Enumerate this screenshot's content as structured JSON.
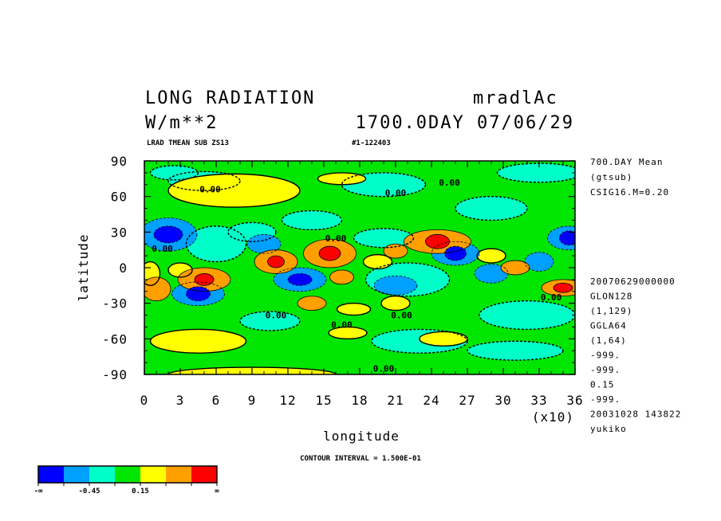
{
  "header": {
    "title": "LONG RADIATION",
    "dataset": "mradlAc",
    "units": "W/m**2",
    "time": "1700.0DAY 07/06/29",
    "var_line": "LRAD TMEAN SUB ZS13",
    "id_line": "#1-122403"
  },
  "side_info": {
    "top": [
      "700.DAY Mean",
      "(gtsub)",
      "CSIG16.M=0.20"
    ],
    "bottom": [
      "20070629000000",
      "GLON128",
      "(1,129)",
      "GGLA64",
      "(1,64)",
      "-999.",
      "-999.",
      "0.15",
      "-999.",
      "20031028 143822",
      "yukiko"
    ]
  },
  "chart_data": {
    "type": "heatmap",
    "title": "LONG RADIATION",
    "xlabel": "longitude",
    "ylabel": "latitude",
    "x_scale_note": "(x10)",
    "xlim": [
      0,
      36
    ],
    "ylim": [
      -90,
      90
    ],
    "x_ticks": [
      "0",
      "3",
      "6",
      "9",
      "12",
      "15",
      "18",
      "21",
      "24",
      "27",
      "30",
      "33",
      "36"
    ],
    "y_ticks": [
      "90",
      "60",
      "30",
      "0",
      "-30",
      "-60",
      "-90"
    ],
    "contour_interval_text": "CONTOUR INTERVAL = 1.500E-01",
    "zero_contour_labels": [
      {
        "x": 5.5,
        "y": 66,
        "text": "0.00"
      },
      {
        "x": 21.0,
        "y": 63,
        "text": "0.00"
      },
      {
        "x": 25.5,
        "y": 72,
        "text": "0.00"
      },
      {
        "x": 1.5,
        "y": 16,
        "text": "0.00"
      },
      {
        "x": 16.0,
        "y": 25,
        "text": "0.00"
      },
      {
        "x": 11.0,
        "y": -40,
        "text": "0.00"
      },
      {
        "x": 16.5,
        "y": -48,
        "text": "0.00"
      },
      {
        "x": 21.5,
        "y": -40,
        "text": "0.00"
      },
      {
        "x": 34.0,
        "y": -25,
        "text": "0.00"
      },
      {
        "x": 20.0,
        "y": -85,
        "text": "0.00"
      }
    ],
    "color_levels": [
      {
        "level": -3,
        "color": "#0000ff"
      },
      {
        "level": -2,
        "color": "#00a0ff"
      },
      {
        "level": -1,
        "color": "#00ffc8"
      },
      {
        "level": 0,
        "color": "#00e600"
      },
      {
        "level": 1,
        "color": "#ffff00"
      },
      {
        "level": 2,
        "color": "#ffa000"
      },
      {
        "level": 3,
        "color": "#ff0000"
      }
    ],
    "features": [
      {
        "lon": 50,
        "lat": -10,
        "rx": 8,
        "ry": 5,
        "level": 3
      },
      {
        "lon": 110,
        "lat": 5,
        "rx": 7,
        "ry": 5,
        "level": 3
      },
      {
        "lon": 155,
        "lat": 12,
        "rx": 9,
        "ry": 6,
        "level": 3
      },
      {
        "lon": 245,
        "lat": 22,
        "rx": 10,
        "ry": 6,
        "level": 3
      },
      {
        "lon": 350,
        "lat": -17,
        "rx": 8,
        "ry": 4,
        "level": 3
      },
      {
        "lon": 50,
        "lat": -10,
        "rx": 22,
        "ry": 10,
        "level": 2
      },
      {
        "lon": 110,
        "lat": 5,
        "rx": 18,
        "ry": 10,
        "level": 2
      },
      {
        "lon": 155,
        "lat": 12,
        "rx": 22,
        "ry": 12,
        "level": 2
      },
      {
        "lon": 245,
        "lat": 22,
        "rx": 28,
        "ry": 10,
        "level": 2
      },
      {
        "lon": 350,
        "lat": -17,
        "rx": 18,
        "ry": 7,
        "level": 2
      },
      {
        "lon": 10,
        "lat": -18,
        "rx": 12,
        "ry": 10,
        "level": 2
      },
      {
        "lon": 165,
        "lat": -8,
        "rx": 10,
        "ry": 6,
        "level": 2
      },
      {
        "lon": 210,
        "lat": 14,
        "rx": 10,
        "ry": 6,
        "level": 2
      },
      {
        "lon": 310,
        "lat": 0,
        "rx": 12,
        "ry": 6,
        "level": 2
      },
      {
        "lon": 140,
        "lat": -30,
        "rx": 12,
        "ry": 6,
        "level": 2
      },
      {
        "lon": 20,
        "lat": 28,
        "rx": 12,
        "ry": 7,
        "level": -3
      },
      {
        "lon": 45,
        "lat": -22,
        "rx": 10,
        "ry": 6,
        "level": -3
      },
      {
        "lon": 260,
        "lat": 12,
        "rx": 9,
        "ry": 6,
        "level": -3
      },
      {
        "lon": 355,
        "lat": 25,
        "rx": 8,
        "ry": 6,
        "level": -3
      },
      {
        "lon": 130,
        "lat": -10,
        "rx": 10,
        "ry": 5,
        "level": -3
      },
      {
        "lon": 20,
        "lat": 28,
        "rx": 24,
        "ry": 14,
        "level": -2
      },
      {
        "lon": 45,
        "lat": -22,
        "rx": 22,
        "ry": 10,
        "level": -2
      },
      {
        "lon": 260,
        "lat": 12,
        "rx": 20,
        "ry": 10,
        "level": -2
      },
      {
        "lon": 355,
        "lat": 25,
        "rx": 18,
        "ry": 10,
        "level": -2
      },
      {
        "lon": 130,
        "lat": -10,
        "rx": 22,
        "ry": 10,
        "level": -2
      },
      {
        "lon": 210,
        "lat": -15,
        "rx": 18,
        "ry": 8,
        "level": -2
      },
      {
        "lon": 290,
        "lat": -5,
        "rx": 14,
        "ry": 8,
        "level": -2
      },
      {
        "lon": 100,
        "lat": 20,
        "rx": 14,
        "ry": 8,
        "level": -2
      },
      {
        "lon": 330,
        "lat": 5,
        "rx": 12,
        "ry": 8,
        "level": -2
      },
      {
        "lon": 75,
        "lat": 65,
        "rx": 55,
        "ry": 14,
        "level": 1
      },
      {
        "lon": 165,
        "lat": 75,
        "rx": 20,
        "ry": 5,
        "level": 1
      },
      {
        "lon": 45,
        "lat": -62,
        "rx": 40,
        "ry": 10,
        "level": 1
      },
      {
        "lon": 250,
        "lat": -60,
        "rx": 20,
        "ry": 6,
        "level": 1
      },
      {
        "lon": 90,
        "lat": -90,
        "rx": 70,
        "ry": 6,
        "level": 1
      },
      {
        "lon": 290,
        "lat": 10,
        "rx": 12,
        "ry": 6,
        "level": 1
      },
      {
        "lon": 195,
        "lat": 5,
        "rx": 12,
        "ry": 6,
        "level": 1
      },
      {
        "lon": 175,
        "lat": -35,
        "rx": 14,
        "ry": 5,
        "level": 1
      },
      {
        "lon": 210,
        "lat": -30,
        "rx": 12,
        "ry": 6,
        "level": 1
      },
      {
        "lon": 170,
        "lat": -55,
        "rx": 16,
        "ry": 5,
        "level": 1
      },
      {
        "lon": 30,
        "lat": -2,
        "rx": 10,
        "ry": 6,
        "level": 1
      },
      {
        "lon": 5,
        "lat": -5,
        "rx": 8,
        "ry": 10,
        "level": 1
      },
      {
        "lon": 50,
        "lat": 73,
        "rx": 30,
        "ry": 8,
        "level": -1
      },
      {
        "lon": 200,
        "lat": 70,
        "rx": 35,
        "ry": 10,
        "level": -1
      },
      {
        "lon": 330,
        "lat": 80,
        "rx": 35,
        "ry": 8,
        "level": -1
      },
      {
        "lon": 320,
        "lat": -40,
        "rx": 40,
        "ry": 12,
        "level": -1
      },
      {
        "lon": 230,
        "lat": -62,
        "rx": 40,
        "ry": 10,
        "level": -1
      },
      {
        "lon": 310,
        "lat": -70,
        "rx": 40,
        "ry": 8,
        "level": -1
      },
      {
        "lon": 60,
        "lat": 20,
        "rx": 25,
        "ry": 15,
        "level": -1
      },
      {
        "lon": 200,
        "lat": 25,
        "rx": 25,
        "ry": 8,
        "level": -1
      },
      {
        "lon": 220,
        "lat": -10,
        "rx": 35,
        "ry": 14,
        "level": -1
      },
      {
        "lon": 140,
        "lat": 40,
        "rx": 25,
        "ry": 8,
        "level": -1
      },
      {
        "lon": 25,
        "lat": 80,
        "rx": 20,
        "ry": 6,
        "level": -1
      },
      {
        "lon": 290,
        "lat": 50,
        "rx": 30,
        "ry": 10,
        "level": -1
      },
      {
        "lon": 90,
        "lat": 30,
        "rx": 20,
        "ry": 8,
        "level": -1
      },
      {
        "lon": 105,
        "lat": -45,
        "rx": 25,
        "ry": 8,
        "level": -1
      }
    ]
  },
  "colorbar": {
    "labels": [
      "-∞",
      "-0.45",
      "0.15",
      "∞"
    ],
    "colors": [
      "#0000ff",
      "#00a0ff",
      "#00ffc8",
      "#00e600",
      "#ffff00",
      "#ffa000",
      "#ff0000"
    ]
  }
}
